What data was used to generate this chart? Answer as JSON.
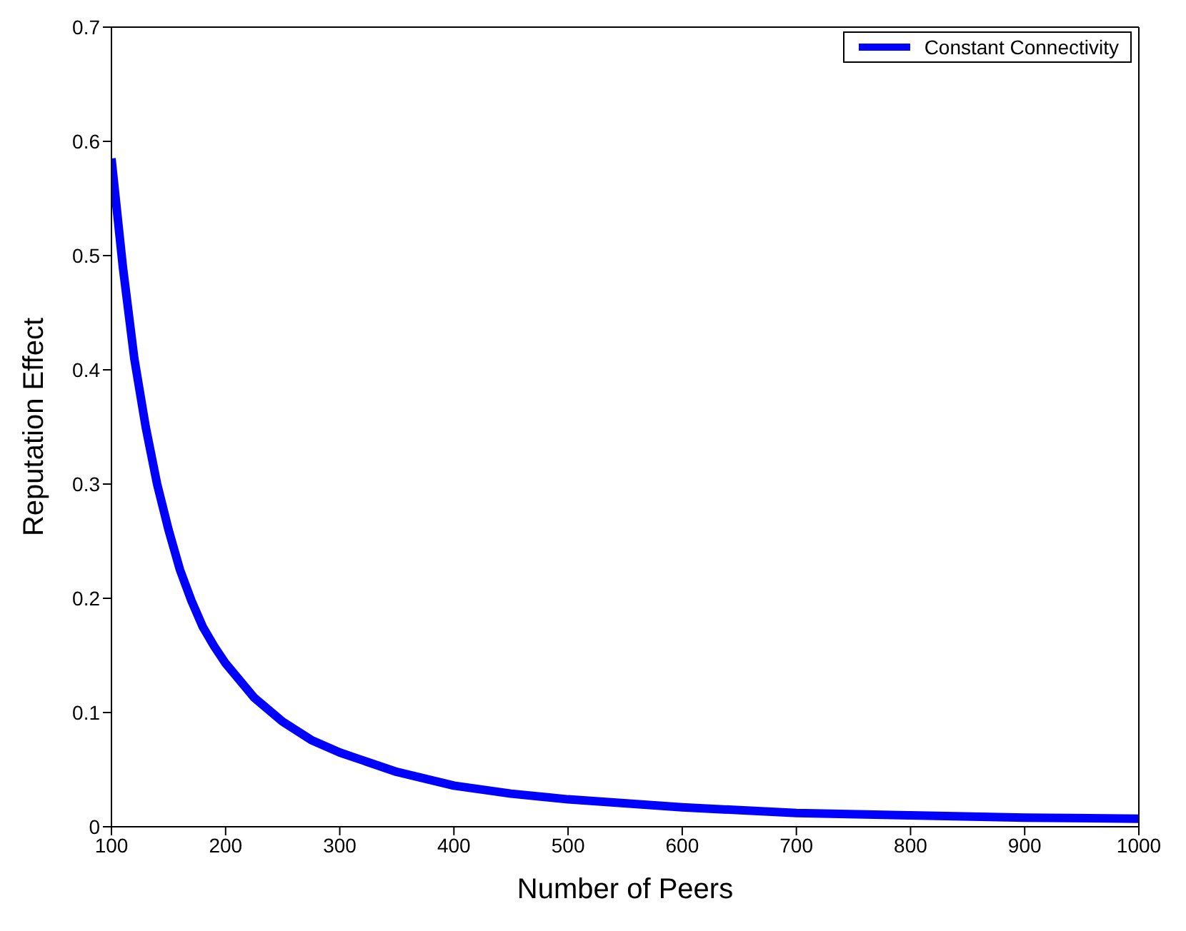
{
  "chart_data": {
    "type": "line",
    "xlabel": "Number of Peers",
    "ylabel": "Reputation Effect",
    "x": [
      100,
      110,
      120,
      130,
      140,
      150,
      160,
      170,
      180,
      190,
      200,
      225,
      250,
      275,
      300,
      350,
      400,
      450,
      500,
      600,
      700,
      800,
      900,
      1000
    ],
    "series": [
      {
        "name": "Constant Connectivity",
        "color": "#0000ff",
        "values": [
          0.585,
          0.49,
          0.41,
          0.35,
          0.3,
          0.26,
          0.225,
          0.198,
          0.175,
          0.158,
          0.143,
          0.113,
          0.092,
          0.076,
          0.065,
          0.048,
          0.036,
          0.029,
          0.024,
          0.017,
          0.012,
          0.01,
          0.008,
          0.007
        ]
      }
    ],
    "xlim": [
      100,
      1000
    ],
    "xticks": [
      100,
      200,
      300,
      400,
      500,
      600,
      700,
      800,
      900,
      1000
    ],
    "ylim": [
      0,
      0.7
    ],
    "yticks": [
      0,
      0.1,
      0.2,
      0.3,
      0.4,
      0.5,
      0.6,
      0.7
    ],
    "grid": false,
    "legend": "top right",
    "marker": "none",
    "line_style": "solid"
  }
}
